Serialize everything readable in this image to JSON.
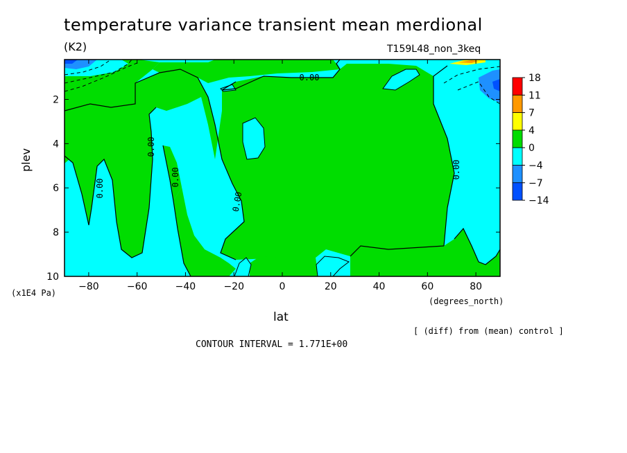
{
  "chart_data": {
    "type": "heatmap",
    "title": "temperature variance transient mean merdional",
    "units_label": "(K2)",
    "run_label": "T159L48_non_3keq",
    "xlabel": "lat",
    "x_units": "(degrees_north)",
    "ylabel": "plev",
    "y_units": "(x1E4 Pa)",
    "xlim": [
      -90,
      90
    ],
    "ylim": [
      10,
      0.2
    ],
    "x_ticks": [
      "-80",
      "-60",
      "-40",
      "-20",
      "0",
      "20",
      "40",
      "60",
      "80"
    ],
    "y_ticks": [
      "2",
      "4",
      "6",
      "8",
      "10"
    ],
    "legend": {
      "placement": "right",
      "levels": [
        "18",
        "11",
        "7",
        "4",
        "0",
        "-4",
        "-7",
        "-14"
      ],
      "colors": [
        "#ff0000",
        "#ff9900",
        "#ffff00",
        "#00dd00",
        "#00ffff",
        "#1e90ff",
        "#0050ff"
      ]
    },
    "contour_labels": [
      "0.00",
      "0.00",
      "0.00",
      "0.00",
      "0.00",
      "0.00"
    ],
    "contour_interval_text": "CONTOUR INTERVAL = 1.771E+00",
    "note": "[ (diff) from (mean) control ]",
    "regions": [
      {
        "band": "0 to 4",
        "description": "positive diff"
      },
      {
        "band": "-4 to 0",
        "description": "negative diff"
      }
    ]
  }
}
